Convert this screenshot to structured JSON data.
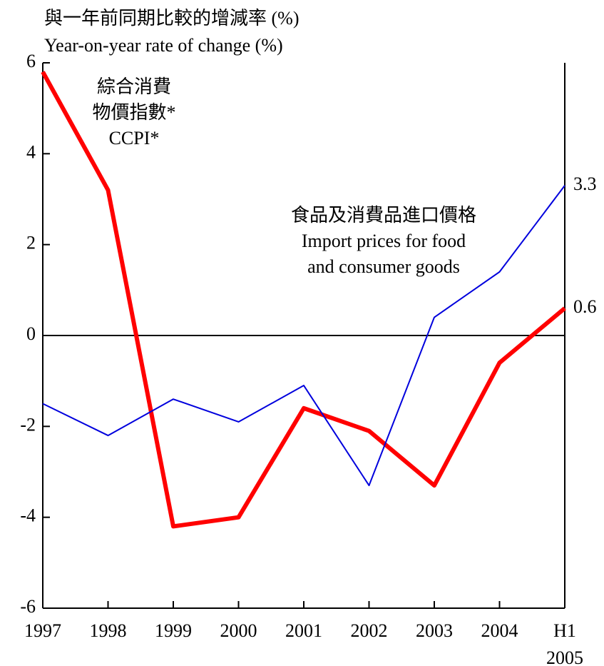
{
  "chart_data": {
    "type": "line",
    "y_label_lines": [
      "與一年前同期比較的增減率 (%)",
      "Year-on-year rate of change (%)"
    ],
    "categories": [
      "1997",
      "1998",
      "1999",
      "2000",
      "2001",
      "2002",
      "2003",
      "2004",
      "H1\n2005"
    ],
    "series": [
      {
        "name": [
          "綜合消費",
          "物價指數*",
          "CCPI*"
        ],
        "color": "#ff0000",
        "values": [
          5.8,
          3.2,
          -4.2,
          -4.0,
          -1.6,
          -2.1,
          -3.3,
          -0.6,
          0.6
        ]
      },
      {
        "name": [
          "食品及消費品進口價格",
          "Import prices for food",
          "and consumer goods"
        ],
        "color": "#0000dd",
        "values": [
          -1.5,
          -2.2,
          -1.4,
          -1.9,
          -1.1,
          -3.3,
          0.4,
          1.4,
          3.3
        ]
      }
    ],
    "ylim": [
      -6,
      6
    ],
    "yticks": [
      -6,
      -4,
      -2,
      0,
      2,
      4,
      6
    ]
  }
}
